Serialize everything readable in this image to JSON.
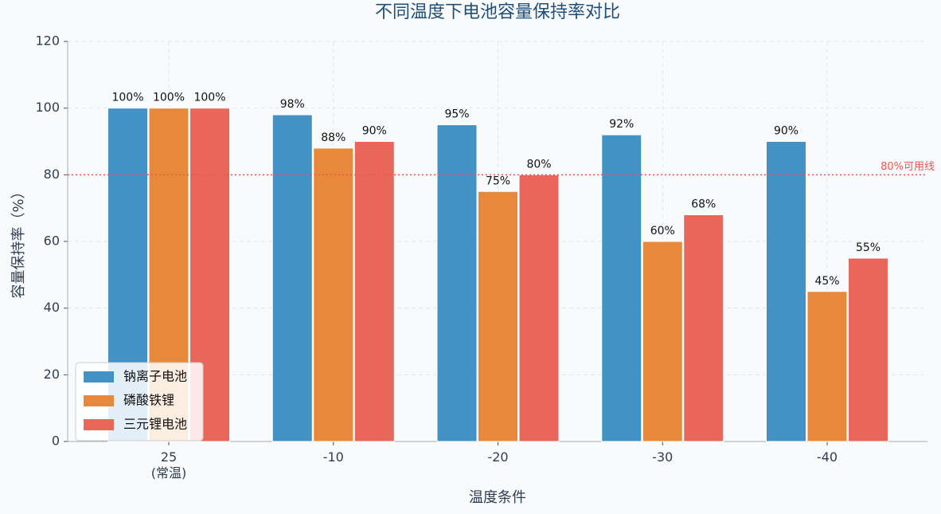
{
  "chart_data": {
    "type": "bar",
    "title": "不同温度下电池容量保持率对比",
    "x_label": "温度条件",
    "y_label": "容量保持率（%）",
    "categories": [
      "25\n(常温)",
      "-10",
      "-20",
      "-30",
      "-40"
    ],
    "series": [
      {
        "name": "钠离子电池",
        "color": "#4292c6",
        "values": [
          100,
          98,
          95,
          92,
          90
        ],
        "value_labels": [
          "100%",
          "98%",
          "95%",
          "92%",
          "90%"
        ]
      },
      {
        "name": "磷酸铁锂",
        "color": "#e8883a",
        "values": [
          100,
          88,
          75,
          60,
          45
        ],
        "value_labels": [
          "100%",
          "88%",
          "75%",
          "60%",
          "45%"
        ]
      },
      {
        "name": "三元锂电池",
        "color": "#e8665a",
        "values": [
          100,
          90,
          80,
          68,
          55
        ],
        "value_labels": [
          "100%",
          "90%",
          "80%",
          "68%",
          "55%"
        ]
      }
    ],
    "reference_line": {
      "value": 80,
      "label": "80%可用线",
      "color": "#f05454"
    },
    "ylim": [
      0,
      120
    ],
    "yticks": [
      0,
      20,
      40,
      60,
      80,
      100,
      120
    ],
    "grid": true,
    "legend": "lower left"
  }
}
